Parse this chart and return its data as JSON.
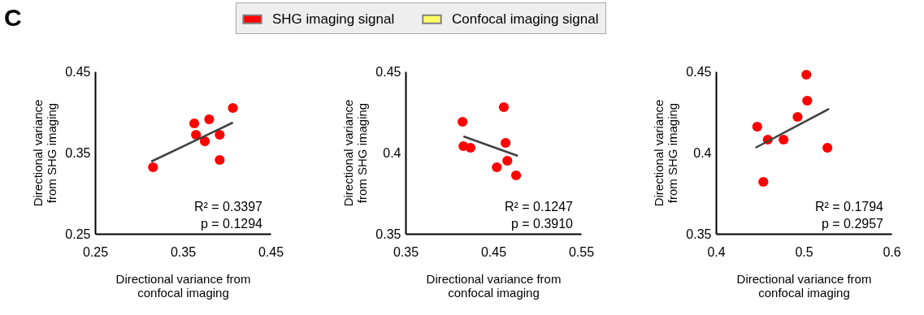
{
  "chart_data": [
    {
      "type": "scatter",
      "annotations": [
        "C",
        "R² = 0.3397",
        "p = 0.1294"
      ],
      "xlabel": "Directional variance from\nconfocal imaging",
      "ylabel": "Directional variance\nfrom SHG imaging",
      "xlim": [
        0.25,
        0.45
      ],
      "xticks": [
        0.25,
        0.35,
        0.45
      ],
      "ylim": [
        0.25,
        0.45
      ],
      "yticks": [
        0.25,
        0.35,
        0.45
      ],
      "grid": false,
      "legend": "top",
      "series": [
        {
          "name": "SHG imaging signal",
          "color": "#ff0000",
          "marker": "circle",
          "x": [
            0.316,
            0.363,
            0.365,
            0.375,
            0.38,
            0.392,
            0.392,
            0.407
          ],
          "values": [
            0.332,
            0.386,
            0.372,
            0.364,
            0.391,
            0.372,
            0.341,
            0.405
          ]
        },
        {
          "name": "Confocal imaging signal",
          "color": "#ffff66"
        },
        {
          "type": "line",
          "color": "#404040",
          "x": [
            0.314,
            0.407
          ],
          "values": [
            0.339,
            0.387
          ]
        }
      ]
    },
    {
      "type": "scatter",
      "annotations": [
        "R² = 0.1247",
        "p = 0.3910"
      ],
      "xlabel": "Directional variance from\nconfocal imaging",
      "ylabel": "Directional variance\nfrom SHG imaging",
      "xlim": [
        0.35,
        0.55
      ],
      "xticks": [
        0.35,
        0.45,
        0.55
      ],
      "ylim": [
        0.35,
        0.45
      ],
      "yticks": [
        0.35,
        0.4,
        0.45
      ],
      "grid": false,
      "series": [
        {
          "color": "#ff0000",
          "marker": "circle",
          "x": [
            0.415,
            0.416,
            0.424,
            0.462,
            0.464,
            0.466,
            0.454,
            0.476
          ],
          "values": [
            0.419,
            0.404,
            0.403,
            0.428,
            0.406,
            0.395,
            0.391,
            0.386
          ]
        },
        {
          "type": "line",
          "color": "#404040",
          "x": [
            0.416,
            0.478
          ],
          "values": [
            0.41,
            0.398
          ]
        }
      ]
    },
    {
      "type": "scatter",
      "annotations": [
        "R² = 0.1794",
        "p = 0.2957"
      ],
      "xlabel": "Directional variance from\nconfocal imaging",
      "ylabel": "Directional variance\nfrom SHG imaging",
      "xlim": [
        0.4,
        0.6
      ],
      "xticks": [
        0.4,
        0.5,
        0.6
      ],
      "ylim": [
        0.35,
        0.45
      ],
      "yticks": [
        0.35,
        0.4,
        0.45
      ],
      "grid": false,
      "series": [
        {
          "color": "#ff0000",
          "marker": "circle",
          "x": [
            0.447,
            0.459,
            0.477,
            0.493,
            0.503,
            0.504,
            0.527,
            0.454
          ],
          "values": [
            0.416,
            0.408,
            0.408,
            0.422,
            0.448,
            0.432,
            0.403,
            0.382
          ]
        },
        {
          "type": "line",
          "color": "#404040",
          "x": [
            0.445,
            0.529
          ],
          "values": [
            0.403,
            0.427
          ]
        }
      ]
    }
  ]
}
